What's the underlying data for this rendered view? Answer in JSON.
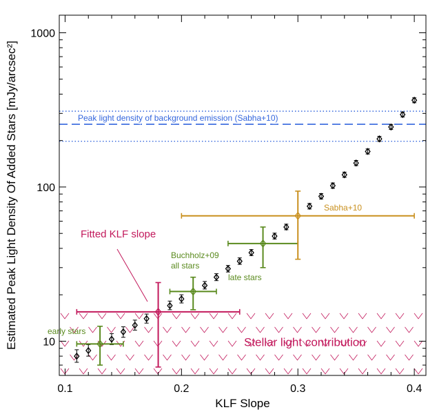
{
  "chart_data": {
    "type": "scatter",
    "xlabel": "KLF Slope",
    "ylabel": "Estimated Peak Light Density Of Added Stars [mJy/arcsec²]",
    "xlim": [
      0.095,
      0.41
    ],
    "ylim": [
      6,
      1300
    ],
    "yscale": "log",
    "xticks": [
      "0.1",
      "0.2",
      "0.3",
      "0.4"
    ],
    "yticks": [
      "10",
      "100",
      "1000"
    ],
    "colors": {
      "black": "#000000",
      "crimson": "#c2185b",
      "green": "#5a8a1e",
      "gold": "#c9901e",
      "blue": "#3366dd"
    },
    "series": [
      {
        "color": "black",
        "marker": "diamond",
        "points": [
          {
            "x": 0.11,
            "y": 8.0,
            "lo": 7.3,
            "hi": 8.8
          },
          {
            "x": 0.12,
            "y": 8.7,
            "lo": 8.0,
            "hi": 9.5
          },
          {
            "x": 0.14,
            "y": 10.3,
            "lo": 9.5,
            "hi": 11.2
          },
          {
            "x": 0.15,
            "y": 11.5,
            "lo": 10.6,
            "hi": 12.4
          },
          {
            "x": 0.16,
            "y": 12.7,
            "lo": 11.8,
            "hi": 13.7
          },
          {
            "x": 0.17,
            "y": 14.0,
            "lo": 13.1,
            "hi": 15.0
          },
          {
            "x": 0.19,
            "y": 17.0,
            "lo": 16.0,
            "hi": 18.2
          },
          {
            "x": 0.2,
            "y": 18.8,
            "lo": 17.7,
            "hi": 20.0
          },
          {
            "x": 0.22,
            "y": 23.0,
            "lo": 21.8,
            "hi": 24.4
          },
          {
            "x": 0.23,
            "y": 26.0,
            "lo": 24.7,
            "hi": 27.4
          },
          {
            "x": 0.24,
            "y": 29.5,
            "lo": 28.1,
            "hi": 31.0
          },
          {
            "x": 0.25,
            "y": 33.0,
            "lo": 31.5,
            "hi": 34.7
          },
          {
            "x": 0.26,
            "y": 37.5,
            "lo": 35.9,
            "hi": 39.3
          },
          {
            "x": 0.28,
            "y": 48.0,
            "lo": 46.0,
            "hi": 50.2
          },
          {
            "x": 0.29,
            "y": 55.0,
            "lo": 52.8,
            "hi": 57.4
          },
          {
            "x": 0.31,
            "y": 75.0,
            "lo": 72.0,
            "hi": 78.2
          },
          {
            "x": 0.32,
            "y": 87.0,
            "lo": 83.6,
            "hi": 90.6
          },
          {
            "x": 0.33,
            "y": 102.0,
            "lo": 98.0,
            "hi": 106.2
          },
          {
            "x": 0.34,
            "y": 120.0,
            "lo": 115.4,
            "hi": 124.8
          },
          {
            "x": 0.35,
            "y": 143.0,
            "lo": 137.6,
            "hi": 148.6
          },
          {
            "x": 0.36,
            "y": 170.0,
            "lo": 163.6,
            "hi": 176.6
          },
          {
            "x": 0.37,
            "y": 205.0,
            "lo": 197.4,
            "hi": 212.9
          },
          {
            "x": 0.38,
            "y": 245.0,
            "lo": 236.0,
            "hi": 254.4
          },
          {
            "x": 0.39,
            "y": 295.0,
            "lo": 284.3,
            "hi": 306.1
          },
          {
            "x": 0.4,
            "y": 365.0,
            "lo": 351.9,
            "hi": 378.6
          }
        ]
      },
      {
        "color": "crimson",
        "name": "Fitted KLF slope",
        "points": [
          {
            "x": 0.18,
            "y": 15.5,
            "xlo": 0.11,
            "xhi": 0.25,
            "ylo": 6.8,
            "yhi": 24.0
          }
        ]
      },
      {
        "color": "green",
        "points": [
          {
            "x": 0.13,
            "y": 9.6,
            "xlo": 0.11,
            "xhi": 0.15,
            "ylo": 7.0,
            "yhi": 12.5
          },
          {
            "x": 0.21,
            "y": 21.0,
            "xlo": 0.19,
            "xhi": 0.23,
            "ylo": 16.0,
            "yhi": 26.0
          },
          {
            "x": 0.27,
            "y": 43.0,
            "xlo": 0.24,
            "xhi": 0.3,
            "ylo": 30.0,
            "yhi": 55.0
          }
        ]
      },
      {
        "color": "gold",
        "name": "Sabha+10",
        "points": [
          {
            "x": 0.3,
            "y": 65.0,
            "xlo": 0.2,
            "xhi": 0.4,
            "ylo": 34.0,
            "yhi": 94.0
          }
        ]
      }
    ],
    "hlines": [
      {
        "y": 255,
        "style": "dashed",
        "color": "blue",
        "label": "Peak light density of background emission (Sabha+10)"
      },
      {
        "y": 310,
        "style": "dotted",
        "color": "blue"
      },
      {
        "y": 198,
        "style": "dotted",
        "color": "blue"
      }
    ],
    "hatched_region": {
      "y_max": 15.5,
      "label": "Stellar light contribution",
      "color": "crimson"
    },
    "annotations": [
      {
        "text": "Fitted KLF slope",
        "color": "crimson"
      },
      {
        "text": "Buchholz+09",
        "color": "green"
      },
      {
        "text": "all stars",
        "color": "green"
      },
      {
        "text": "late stars",
        "color": "green"
      },
      {
        "text": "early stars",
        "color": "green"
      },
      {
        "text": "Sabha+10",
        "color": "gold"
      }
    ]
  }
}
